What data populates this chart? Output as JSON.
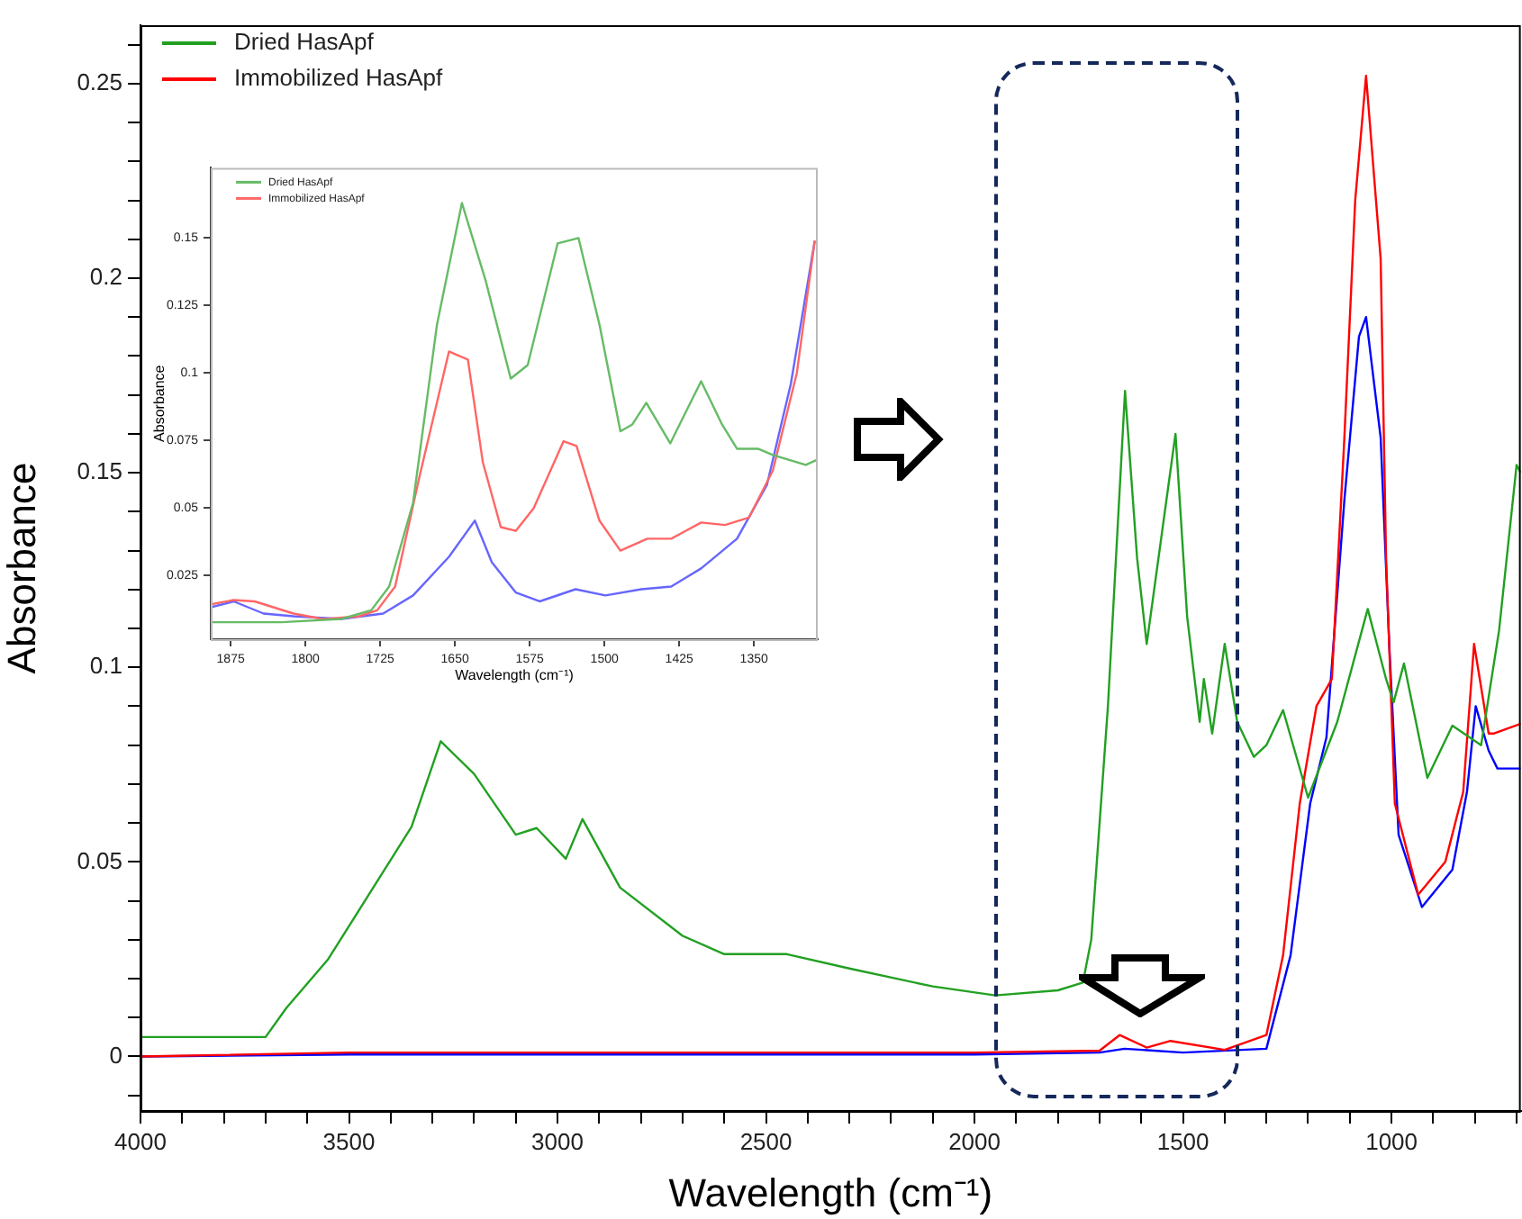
{
  "chart_data": [
    {
      "type": "line",
      "xlabel": "Wavelength (cm⁻¹)",
      "ylabel": "Absorbance",
      "xlim": [
        4000,
        690
      ],
      "ylim": [
        -0.014,
        0.265
      ],
      "xticks": [
        4000,
        {
          "value": 3900,
          "label": null
        },
        {
          "value": 3800,
          "label": null
        },
        {
          "value": 3700,
          "label": null
        },
        {
          "value": 3600,
          "label": null
        },
        3500,
        {
          "value": 3400,
          "label": null
        },
        {
          "value": 3300,
          "label": null
        },
        {
          "value": 3200,
          "label": null
        },
        {
          "value": 3100,
          "label": null
        },
        3000,
        {
          "value": 2900,
          "label": null
        },
        {
          "value": 2800,
          "label": null
        },
        {
          "value": 2700,
          "label": null
        },
        {
          "value": 2600,
          "label": null
        },
        2500,
        {
          "value": 2400,
          "label": null
        },
        {
          "value": 2300,
          "label": null
        },
        {
          "value": 2200,
          "label": null
        },
        {
          "value": 2100,
          "label": null
        },
        2000,
        {
          "value": 1900,
          "label": null
        },
        {
          "value": 1800,
          "label": null
        },
        {
          "value": 1700,
          "label": null
        },
        {
          "value": 1600,
          "label": null
        },
        1500,
        {
          "value": 1400,
          "label": null
        },
        {
          "value": 1300,
          "label": null
        },
        {
          "value": 1200,
          "label": null
        },
        {
          "value": 1100,
          "label": null
        },
        1000,
        {
          "value": 900,
          "label": null
        },
        {
          "value": 800,
          "label": null
        },
        {
          "value": 700,
          "label": null
        }
      ],
      "yticks": [
        {
          "value": -0.01,
          "label": null
        },
        0,
        {
          "value": 0.01,
          "label": null
        },
        {
          "value": 0.02,
          "label": null
        },
        {
          "value": 0.03,
          "label": null
        },
        {
          "value": 0.04,
          "label": null
        },
        0.05,
        {
          "value": 0.06,
          "label": null
        },
        {
          "value": 0.07,
          "label": null
        },
        {
          "value": 0.08,
          "label": null
        },
        {
          "value": 0.09,
          "label": null
        },
        0.1,
        {
          "value": 0.11,
          "label": null
        },
        {
          "value": 0.12,
          "label": null
        },
        {
          "value": 0.13,
          "label": null
        },
        {
          "value": 0.14,
          "label": null
        },
        0.15,
        {
          "value": 0.16,
          "label": null
        },
        {
          "value": 0.17,
          "label": null
        },
        {
          "value": 0.18,
          "label": null
        },
        {
          "value": 0.19,
          "label": null
        },
        0.2,
        {
          "value": 0.21,
          "label": null
        },
        {
          "value": 0.22,
          "label": null
        },
        {
          "value": 0.23,
          "label": null
        },
        {
          "value": 0.24,
          "label": null
        },
        0.25,
        {
          "value": 0.26,
          "label": null
        }
      ],
      "legend": "top left",
      "marker": "none",
      "line_style": "solid",
      "series": [
        {
          "name": "Dried HasApf",
          "color": "#22a022",
          "x": [
            4000,
            3700,
            3650,
            3550,
            3450,
            3350,
            3280,
            3200,
            3100,
            3050,
            2980,
            2940,
            2850,
            2700,
            2600,
            2450,
            2300,
            2100,
            1950,
            1800,
            1740,
            1720,
            1680,
            1639,
            1610,
            1587,
            1518,
            1490,
            1460,
            1450,
            1430,
            1400,
            1370,
            1330,
            1300,
            1260,
            1200,
            1130,
            1057,
            1013,
            995,
            970,
            914,
            854,
            785,
            742,
            700,
            690
          ],
          "values": [
            0.005,
            0.005,
            0.0125,
            0.025,
            0.042,
            0.059,
            0.081,
            0.0726,
            0.057,
            0.0587,
            0.0508,
            0.061,
            0.0434,
            0.031,
            0.0263,
            0.0263,
            0.0226,
            0.018,
            0.0157,
            0.017,
            0.019,
            0.03,
            0.09,
            0.171,
            0.128,
            0.106,
            0.16,
            0.113,
            0.086,
            0.097,
            0.083,
            0.106,
            0.086,
            0.077,
            0.08,
            0.089,
            0.0665,
            0.086,
            0.115,
            0.097,
            0.091,
            0.101,
            0.0716,
            0.085,
            0.08,
            0.1095,
            0.152,
            0.15
          ]
        },
        {
          "name": "Immobilized HasApf",
          "color": "#ff0000",
          "x": [
            4000,
            3500,
            3000,
            2500,
            2000,
            1700,
            1652,
            1587,
            1530,
            1400,
            1300,
            1260,
            1220,
            1180,
            1143,
            1113,
            1087,
            1061,
            1026,
            1013,
            992,
            936,
            871,
            828,
            802,
            767,
            754,
            690
          ],
          "values": [
            0.0,
            0.001,
            0.001,
            0.001,
            0.001,
            0.0015,
            0.0055,
            0.0023,
            0.004,
            0.0017,
            0.0055,
            0.026,
            0.065,
            0.09,
            0.097,
            0.159,
            0.22,
            0.252,
            0.205,
            0.128,
            0.065,
            0.0416,
            0.05,
            0.068,
            0.106,
            0.083,
            0.083,
            0.0855
          ]
        },
        {
          "color": "#0000ff",
          "x": [
            4000,
            3500,
            3000,
            2500,
            2000,
            1700,
            1640,
            1500,
            1300,
            1242,
            1195,
            1156,
            1113,
            1078,
            1061,
            1026,
            1005,
            983,
            927,
            854,
            819,
            798,
            767,
            746,
            690
          ],
          "values": [
            0.0,
            0.0005,
            0.0005,
            0.0005,
            0.0005,
            0.001,
            0.002,
            0.001,
            0.002,
            0.026,
            0.065,
            0.082,
            0.143,
            0.185,
            0.19,
            0.159,
            0.105,
            0.057,
            0.0384,
            0.048,
            0.068,
            0.09,
            0.0786,
            0.074,
            0.074
          ]
        }
      ]
    },
    {
      "type": "line",
      "xlabel": "Wavelength (cm⁻¹)",
      "ylabel": "Absorbance",
      "xlim": [
        1895,
        1286
      ],
      "ylim": [
        0.0015,
        0.176
      ],
      "xticks": [
        1875,
        1800,
        1725,
        1650,
        1575,
        1500,
        1425,
        1350
      ],
      "yticks": [
        0.025,
        0.05,
        0.075,
        0.1,
        0.125,
        0.15
      ],
      "legend": "top left",
      "marker": "none",
      "line_style": "solid",
      "series": [
        {
          "name": "Dried HasApf",
          "color": "#66bb66",
          "x": [
            1895,
            1824,
            1764,
            1734,
            1716,
            1692,
            1668,
            1643,
            1619,
            1594,
            1577,
            1547,
            1526,
            1505,
            1484,
            1472,
            1458,
            1434,
            1403,
            1382,
            1367,
            1346,
            1331,
            1298,
            1286
          ],
          "values": [
            0.0078,
            0.0078,
            0.009,
            0.0122,
            0.021,
            0.052,
            0.118,
            0.163,
            0.134,
            0.098,
            0.103,
            0.148,
            0.15,
            0.118,
            0.0785,
            0.081,
            0.089,
            0.074,
            0.097,
            0.081,
            0.072,
            0.072,
            0.0697,
            0.066,
            0.068
          ]
        },
        {
          "name": "Immobilized HasApf",
          "color": "#ff6666",
          "x": [
            1895,
            1872,
            1851,
            1812,
            1782,
            1746,
            1728,
            1710,
            1686,
            1656,
            1637,
            1622,
            1604,
            1589,
            1571,
            1541,
            1528,
            1505,
            1484,
            1457,
            1433,
            1403,
            1379,
            1355,
            1331,
            1307,
            1289
          ],
          "values": [
            0.0144,
            0.016,
            0.0155,
            0.011,
            0.0089,
            0.01,
            0.0122,
            0.021,
            0.061,
            0.108,
            0.105,
            0.067,
            0.043,
            0.0416,
            0.05,
            0.0748,
            0.073,
            0.0454,
            0.0343,
            0.0387,
            0.0387,
            0.0447,
            0.0438,
            0.0465,
            0.064,
            0.1,
            0.149
          ]
        },
        {
          "color": "#6666ff",
          "x": [
            1895,
            1872,
            1842,
            1812,
            1764,
            1722,
            1692,
            1656,
            1630,
            1613,
            1589,
            1565,
            1529,
            1499,
            1463,
            1433,
            1403,
            1367,
            1337,
            1313,
            1289
          ],
          "values": [
            0.0133,
            0.0155,
            0.011,
            0.01,
            0.009,
            0.011,
            0.0177,
            0.032,
            0.0454,
            0.03,
            0.0188,
            0.0155,
            0.02,
            0.0177,
            0.02,
            0.021,
            0.0277,
            0.0387,
            0.0586,
            0.096,
            0.149
          ]
        }
      ]
    }
  ]
}
